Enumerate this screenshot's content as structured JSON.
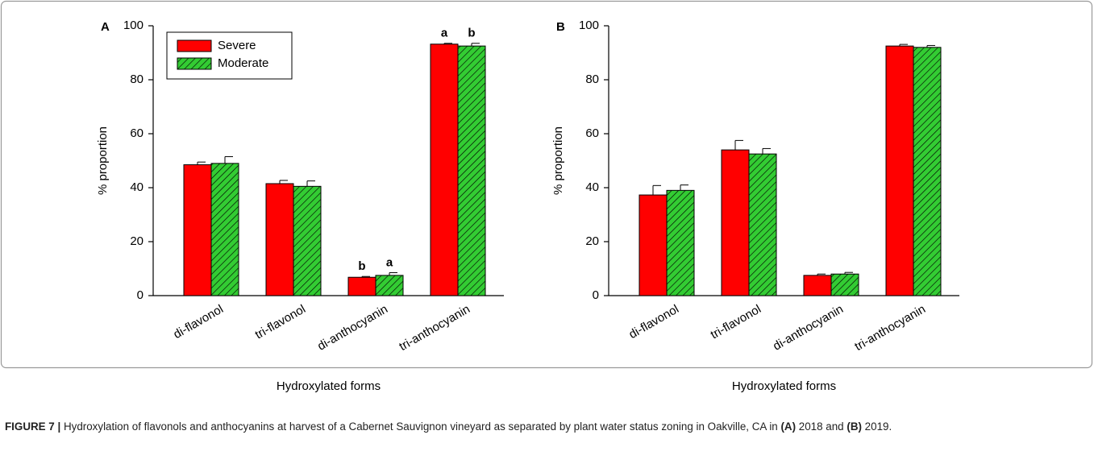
{
  "chart_data": [
    {
      "type": "bar",
      "panel_label": "A",
      "ylabel": "% proportion",
      "xlabel": "Hydroxylated forms",
      "categories": [
        "di-flavonol",
        "tri-flavonol",
        "di-anthocyanin",
        "tri-anthocyanin"
      ],
      "series": [
        {
          "name": "Severe",
          "color": "#ff0000",
          "values": [
            48.5,
            41.5,
            6.8,
            93.2
          ],
          "errors": [
            1.0,
            1.2,
            0.3,
            0.3
          ],
          "letters": [
            null,
            null,
            "b",
            "a"
          ]
        },
        {
          "name": "Moderate",
          "color": "#33cc33",
          "hatch": true,
          "values": [
            49.0,
            40.5,
            7.5,
            92.5
          ],
          "errors": [
            2.5,
            2.0,
            1.0,
            1.0
          ],
          "letters": [
            null,
            null,
            "a",
            "b"
          ]
        }
      ],
      "ylim": [
        0,
        100
      ],
      "yticks": [
        0,
        20,
        40,
        60,
        80,
        100
      ],
      "legend": "upper left"
    },
    {
      "type": "bar",
      "panel_label": "B",
      "ylabel": "% proportion",
      "xlabel": "Hydroxylated forms",
      "categories": [
        "di-flavonol",
        "tri-flavonol",
        "di-anthocyanin",
        "tri-anthocyanin"
      ],
      "series": [
        {
          "name": "Severe",
          "color": "#ff0000",
          "values": [
            37.3,
            54.0,
            7.5,
            92.5
          ],
          "errors": [
            3.5,
            3.5,
            0.5,
            0.6
          ]
        },
        {
          "name": "Moderate",
          "color": "#33cc33",
          "hatch": true,
          "values": [
            39.0,
            52.5,
            8.0,
            92.0
          ],
          "errors": [
            2.0,
            2.0,
            0.6,
            0.7
          ]
        }
      ],
      "ylim": [
        0,
        100
      ],
      "yticks": [
        0,
        20,
        40,
        60,
        80,
        100
      ]
    }
  ],
  "caption": [
    {
      "text": "FIGURE 7 |",
      "bold": true
    },
    {
      "text": " Hydroxylation of flavonols and anthocyanins at harvest of a Cabernet Sauvignon vineyard as separated by plant water status zoning in Oakville, CA in ",
      "bold": false
    },
    {
      "text": "(A)",
      "bold": true
    },
    {
      "text": " 2018 and ",
      "bold": false
    },
    {
      "text": "(B)",
      "bold": true
    },
    {
      "text": " 2019.",
      "bold": false
    }
  ]
}
